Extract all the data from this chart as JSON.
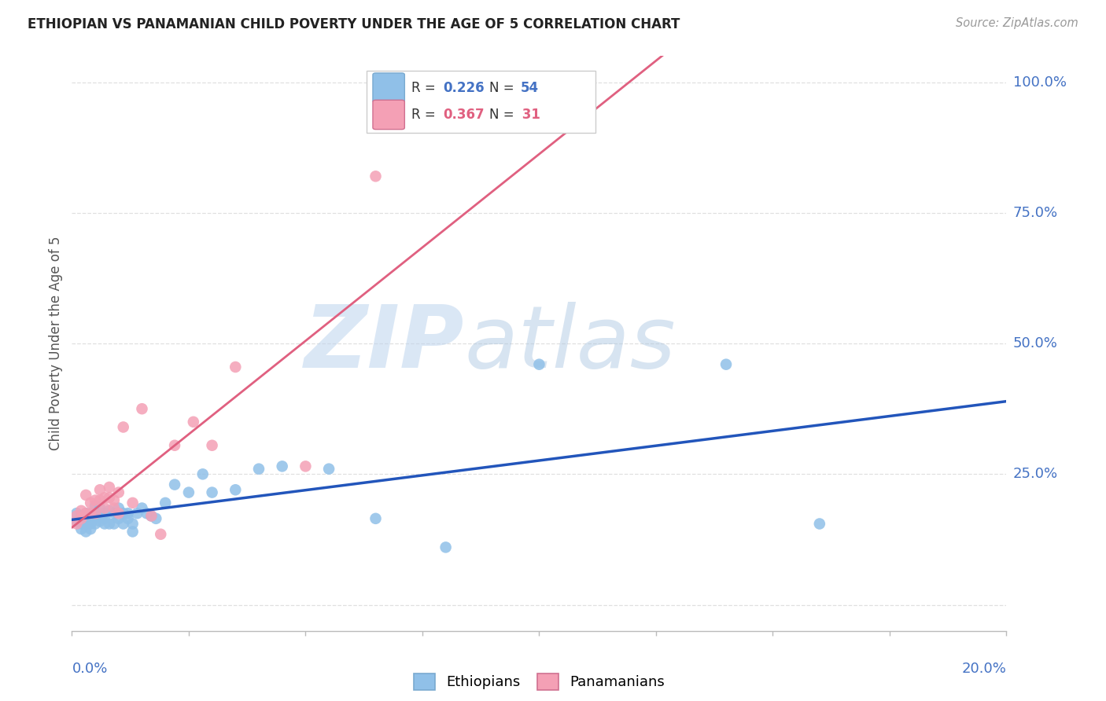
{
  "title": "ETHIOPIAN VS PANAMANIAN CHILD POVERTY UNDER THE AGE OF 5 CORRELATION CHART",
  "source": "Source: ZipAtlas.com",
  "ylabel": "Child Poverty Under the Age of 5",
  "xlim": [
    0.0,
    0.2
  ],
  "ylim": [
    -0.05,
    1.05
  ],
  "watermark_zip": "ZIP",
  "watermark_atlas": "atlas",
  "eth_color": "#90C0E8",
  "pan_color": "#F4A0B5",
  "eth_line_color": "#2255BB",
  "pan_line_color": "#E06080",
  "eth_R": "0.226",
  "eth_N": "54",
  "pan_R": "0.367",
  "pan_N": "31",
  "blue_text_color": "#4472C4",
  "pink_text_color": "#E06080",
  "title_color": "#222222",
  "source_color": "#999999",
  "grid_color": "#DDDDDD",
  "ytick_positions": [
    0.0,
    0.25,
    0.5,
    0.75,
    1.0
  ],
  "ytick_labels": [
    "",
    "25.0%",
    "50.0%",
    "75.0%",
    "100.0%"
  ],
  "eth_scatter_x": [
    0.001,
    0.001,
    0.002,
    0.002,
    0.002,
    0.003,
    0.003,
    0.003,
    0.003,
    0.004,
    0.004,
    0.004,
    0.004,
    0.005,
    0.005,
    0.005,
    0.005,
    0.006,
    0.006,
    0.006,
    0.007,
    0.007,
    0.007,
    0.008,
    0.008,
    0.009,
    0.009,
    0.01,
    0.01,
    0.011,
    0.011,
    0.012,
    0.012,
    0.013,
    0.013,
    0.014,
    0.015,
    0.016,
    0.017,
    0.018,
    0.02,
    0.022,
    0.025,
    0.028,
    0.03,
    0.035,
    0.04,
    0.045,
    0.055,
    0.065,
    0.08,
    0.1,
    0.14,
    0.16
  ],
  "eth_scatter_y": [
    0.175,
    0.16,
    0.17,
    0.155,
    0.145,
    0.175,
    0.165,
    0.155,
    0.14,
    0.175,
    0.165,
    0.155,
    0.145,
    0.19,
    0.175,
    0.165,
    0.155,
    0.185,
    0.17,
    0.16,
    0.175,
    0.165,
    0.155,
    0.18,
    0.155,
    0.175,
    0.155,
    0.185,
    0.165,
    0.175,
    0.155,
    0.175,
    0.165,
    0.14,
    0.155,
    0.175,
    0.185,
    0.175,
    0.17,
    0.165,
    0.195,
    0.23,
    0.215,
    0.25,
    0.215,
    0.22,
    0.26,
    0.265,
    0.26,
    0.165,
    0.11,
    0.46,
    0.46,
    0.155
  ],
  "pan_scatter_x": [
    0.001,
    0.001,
    0.002,
    0.002,
    0.003,
    0.003,
    0.004,
    0.004,
    0.005,
    0.005,
    0.006,
    0.006,
    0.007,
    0.007,
    0.008,
    0.008,
    0.009,
    0.009,
    0.01,
    0.01,
    0.011,
    0.013,
    0.015,
    0.017,
    0.019,
    0.022,
    0.026,
    0.03,
    0.035,
    0.05,
    0.065
  ],
  "pan_scatter_y": [
    0.17,
    0.155,
    0.18,
    0.165,
    0.21,
    0.175,
    0.195,
    0.175,
    0.2,
    0.175,
    0.22,
    0.2,
    0.205,
    0.185,
    0.225,
    0.205,
    0.2,
    0.185,
    0.215,
    0.175,
    0.34,
    0.195,
    0.375,
    0.17,
    0.135,
    0.305,
    0.35,
    0.305,
    0.455,
    0.265,
    0.82
  ]
}
